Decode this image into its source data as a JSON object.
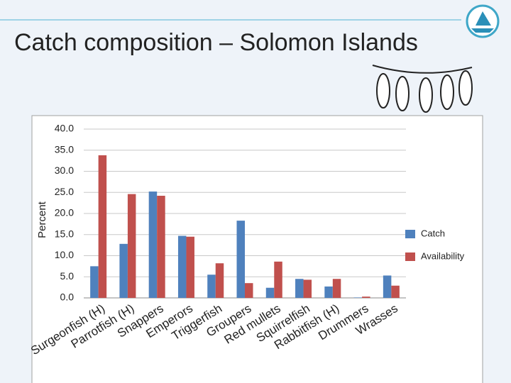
{
  "chart_data": {
    "type": "bar",
    "title": "Catch composition – Solomon Islands",
    "y_label": "Percent",
    "categories": [
      "Surgeonfish (H)",
      "Parrotfish (H)",
      "Snappers",
      "Emperors",
      "Triggerfish",
      "Groupers",
      "Red mullets",
      "Squirrelfish",
      "Rabbitfish (H)",
      "Drummers",
      "Wrasses"
    ],
    "series": [
      {
        "name": "Catch",
        "color": "#4f81bd",
        "values": [
          7.5,
          12.8,
          25.2,
          14.7,
          5.5,
          18.3,
          2.4,
          4.5,
          2.7,
          0.1,
          5.3
        ]
      },
      {
        "name": "Availability",
        "color": "#c0504d",
        "values": [
          33.8,
          24.6,
          24.2,
          14.5,
          8.2,
          3.5,
          8.6,
          4.3,
          4.5,
          0.3,
          2.9
        ]
      }
    ],
    "ylim": [
      0,
      40
    ],
    "yticks": [
      {
        "value": 0,
        "label": "0.0"
      },
      {
        "value": 5,
        "label": "5.0"
      },
      {
        "value": 10,
        "label": "10.0"
      },
      {
        "value": 15,
        "label": "15.0"
      },
      {
        "value": 20,
        "label": "20.0"
      },
      {
        "value": 25,
        "label": "25.0"
      },
      {
        "value": 30,
        "label": "30.0"
      },
      {
        "value": 35,
        "label": "35.0"
      },
      {
        "value": 40,
        "label": "40.0"
      }
    ],
    "grid": true,
    "legend": "right"
  }
}
